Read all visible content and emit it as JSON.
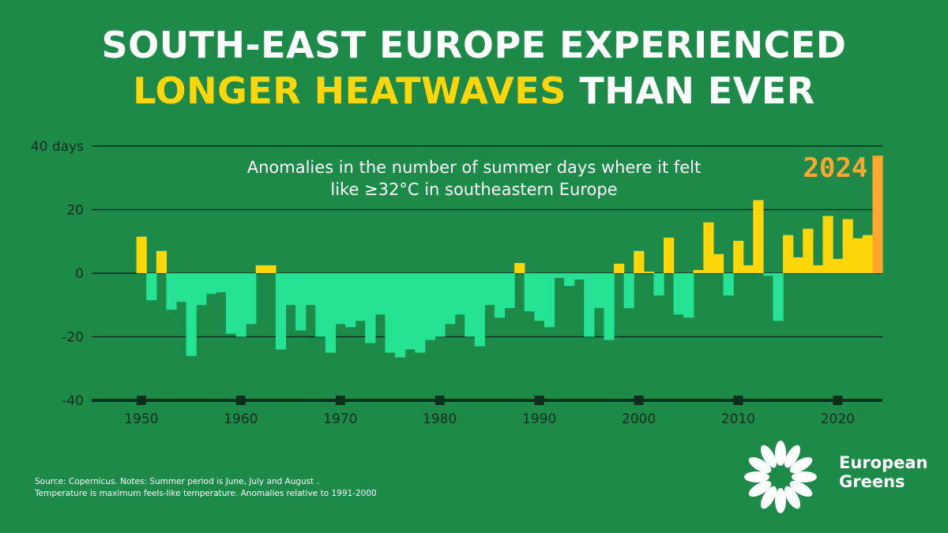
{
  "headline": {
    "line1": "South-East Europe experienced",
    "line2_highlight": "Longer heatwaves",
    "line2_rest": " than ever"
  },
  "source": {
    "line1": "Source: Copernicus. Notes: Summer period is June, July and August .",
    "line2": "Temperature is maximum feels-like temperature. Anomalies relative to 1991-2000"
  },
  "brand": {
    "line1": "European",
    "line2": "Greens",
    "logo": "sunflower-logo-icon"
  },
  "colors": {
    "background": "#1d8a4a",
    "positive": "#ffd60a",
    "negative": "#25e393",
    "highlight": "#ffa630",
    "axis": "#0d2e1a"
  },
  "chart_data": {
    "type": "bar",
    "title": "Anomalies in the number of summer days where it felt like ≥32°C in southeastern Europe",
    "xlabel": "",
    "ylabel": "",
    "x": [
      1950,
      1951,
      1952,
      1953,
      1954,
      1955,
      1956,
      1957,
      1958,
      1959,
      1960,
      1961,
      1962,
      1963,
      1964,
      1965,
      1966,
      1967,
      1968,
      1969,
      1970,
      1971,
      1972,
      1973,
      1974,
      1975,
      1976,
      1977,
      1978,
      1979,
      1980,
      1981,
      1982,
      1983,
      1984,
      1985,
      1986,
      1987,
      1988,
      1989,
      1990,
      1991,
      1992,
      1993,
      1994,
      1995,
      1996,
      1997,
      1998,
      1999,
      2000,
      2001,
      2002,
      2003,
      2004,
      2005,
      2006,
      2007,
      2008,
      2009,
      2010,
      2011,
      2012,
      2013,
      2014,
      2015,
      2016,
      2017,
      2018,
      2019,
      2020,
      2021,
      2022,
      2023,
      2024
    ],
    "values": [
      11.5,
      -8.5,
      7,
      -11.5,
      -9,
      -26,
      -10,
      -6.5,
      -6,
      -19,
      -20,
      -16,
      2.5,
      2.5,
      -24,
      -10,
      -18,
      -10,
      -20,
      -25,
      -16,
      -17,
      -15,
      -22,
      -13,
      -25,
      -26.5,
      -24,
      -25,
      -21,
      -20,
      -16,
      -13,
      -20,
      -23,
      -10,
      -14,
      -11,
      3.2,
      -12,
      -15,
      -17,
      -1.5,
      -4,
      -2,
      -20,
      -11,
      -21,
      3,
      -11,
      7,
      0.5,
      -7,
      11.2,
      -13,
      -14,
      1,
      16,
      6,
      -7,
      10.2,
      2.5,
      23,
      -0.8,
      -15,
      12,
      5,
      14,
      2.5,
      18,
      4.5,
      17,
      11,
      12,
      37
    ],
    "highlight": {
      "x": 2024,
      "label": "2024"
    },
    "xticks": [
      "1950",
      "1960",
      "1970",
      "1980",
      "1990",
      "2000",
      "2010",
      "2020"
    ],
    "yticks": [
      "-40",
      "-20",
      "0",
      "20",
      "40 days"
    ],
    "ylim": [
      -40,
      40
    ],
    "xlim": [
      1945,
      2024.5
    ],
    "grid": true
  }
}
